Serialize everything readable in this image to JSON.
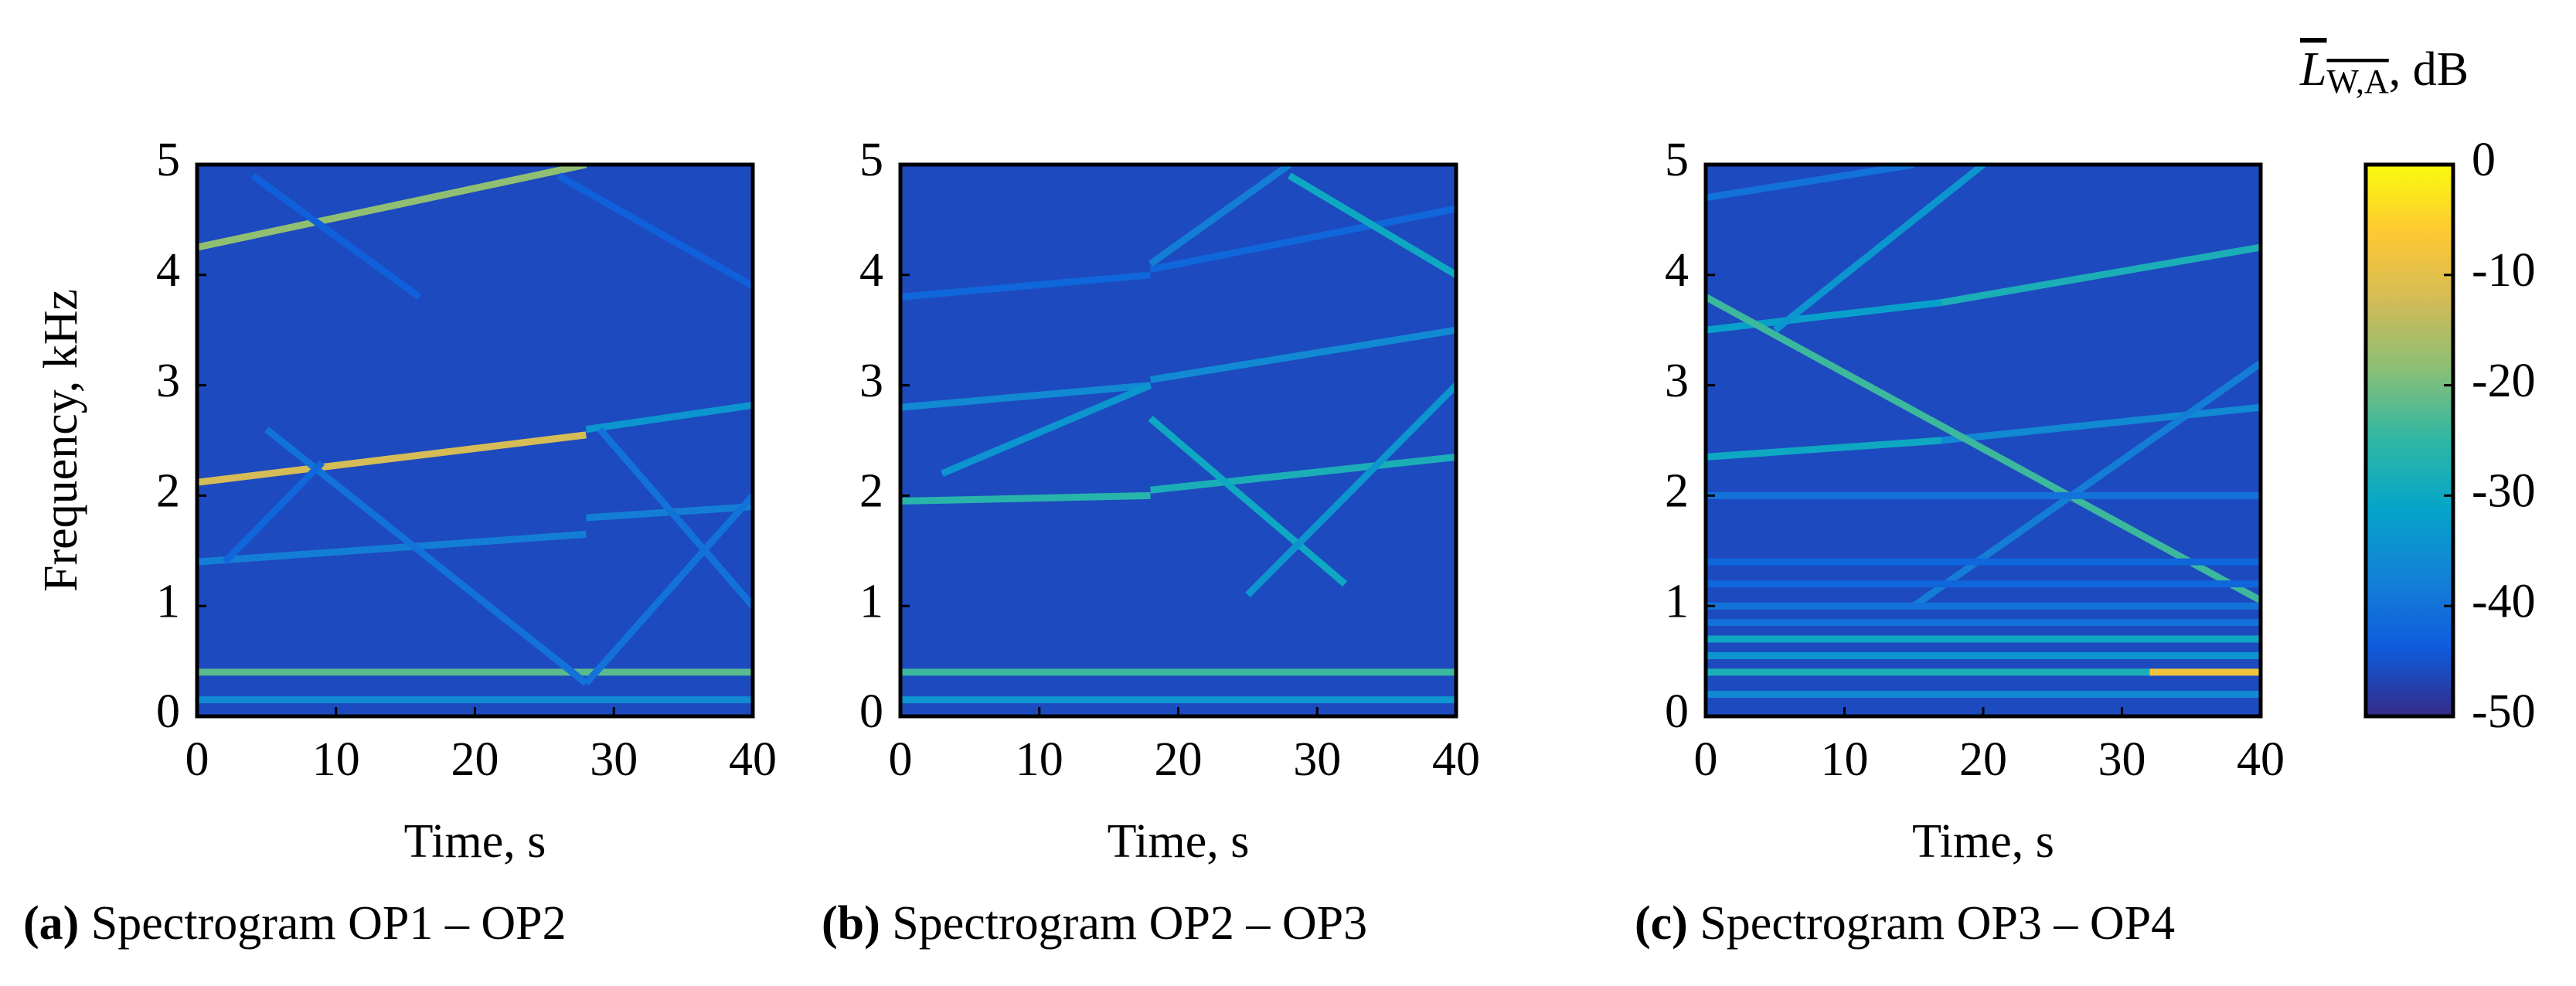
{
  "chart_data": [
    {
      "type": "spectrogram",
      "caption_label": "(a)",
      "caption": "Spectrogram OP1 – OP2",
      "xlabel": "Time, s",
      "ylabel": "Frequency, kHz",
      "xlim": [
        0,
        40
      ],
      "ylim": [
        0,
        5
      ],
      "xticks": [
        0,
        10,
        20,
        30,
        40
      ],
      "yticks": [
        0,
        1,
        2,
        3,
        4,
        5
      ],
      "background": -46,
      "series": [
        {
          "x": [
            0,
            28
          ],
          "values": [
            4.25,
            5.0
          ],
          "level": -18
        },
        {
          "x": [
            0,
            28
          ],
          "values": [
            2.12,
            2.55
          ],
          "level": -12
        },
        {
          "x": [
            28,
            40
          ],
          "values": [
            2.6,
            2.82
          ],
          "level": -34
        },
        {
          "x": [
            0,
            28
          ],
          "values": [
            1.4,
            1.65
          ],
          "level": -38
        },
        {
          "x": [
            28,
            40
          ],
          "values": [
            1.8,
            1.9
          ],
          "level": -38
        },
        {
          "x": [
            0,
            40
          ],
          "values": [
            0.4,
            0.4
          ],
          "level": -22
        },
        {
          "x": [
            0,
            40
          ],
          "values": [
            0.15,
            0.15
          ],
          "level": -36
        },
        {
          "x": [
            5,
            28
          ],
          "values": [
            2.6,
            0.3
          ],
          "level": -40
        },
        {
          "x": [
            2,
            9
          ],
          "values": [
            1.4,
            2.3
          ],
          "level": -42
        },
        {
          "x": [
            29,
            40
          ],
          "values": [
            2.6,
            1.0
          ],
          "level": -40
        },
        {
          "x": [
            28,
            40
          ],
          "values": [
            0.3,
            2.0
          ],
          "level": -40
        },
        {
          "x": [
            4,
            16
          ],
          "values": [
            4.9,
            3.8
          ],
          "level": -43
        },
        {
          "x": [
            26,
            40
          ],
          "values": [
            4.9,
            3.9
          ],
          "level": -43
        }
      ]
    },
    {
      "type": "spectrogram",
      "caption_label": "(b)",
      "caption": "Spectrogram OP2 – OP3",
      "xlabel": "Time, s",
      "xlim": [
        0,
        40
      ],
      "ylim": [
        0,
        5
      ],
      "xticks": [
        0,
        10,
        20,
        30,
        40
      ],
      "yticks": [
        0,
        1,
        2,
        3,
        4,
        5
      ],
      "background": -46,
      "series": [
        {
          "x": [
            0,
            18
          ],
          "values": [
            2.8,
            3.0
          ],
          "level": -36
        },
        {
          "x": [
            18,
            40
          ],
          "values": [
            3.05,
            3.5
          ],
          "level": -36
        },
        {
          "x": [
            0,
            18
          ],
          "values": [
            1.95,
            2.0
          ],
          "level": -26
        },
        {
          "x": [
            18,
            40
          ],
          "values": [
            2.05,
            2.35
          ],
          "level": -28
        },
        {
          "x": [
            0,
            18
          ],
          "values": [
            3.8,
            4.0
          ],
          "level": -42
        },
        {
          "x": [
            18,
            40
          ],
          "values": [
            4.05,
            4.6
          ],
          "level": -42
        },
        {
          "x": [
            0,
            40
          ],
          "values": [
            0.4,
            0.4
          ],
          "level": -24
        },
        {
          "x": [
            0,
            40
          ],
          "values": [
            0.15,
            0.15
          ],
          "level": -34
        },
        {
          "x": [
            3,
            18
          ],
          "values": [
            2.2,
            3.0
          ],
          "level": -34
        },
        {
          "x": [
            18,
            32
          ],
          "values": [
            2.7,
            1.2
          ],
          "level": -30
        },
        {
          "x": [
            25,
            40
          ],
          "values": [
            1.1,
            3.0
          ],
          "level": -34
        },
        {
          "x": [
            18,
            28
          ],
          "values": [
            4.1,
            5.0
          ],
          "level": -38
        },
        {
          "x": [
            28,
            40
          ],
          "values": [
            4.9,
            4.0
          ],
          "level": -30
        }
      ]
    },
    {
      "type": "spectrogram",
      "caption_label": "(c)",
      "caption": "Spectrogram OP3 – OP4",
      "xlabel": "Time, s",
      "xlim": [
        0,
        40
      ],
      "ylim": [
        0,
        5
      ],
      "xticks": [
        0,
        10,
        20,
        30,
        40
      ],
      "yticks": [
        0,
        1,
        2,
        3,
        4,
        5
      ],
      "background": -46,
      "series": [
        {
          "x": [
            0,
            15
          ],
          "values": [
            4.7,
            5.0
          ],
          "level": -40
        },
        {
          "x": [
            0,
            17
          ],
          "values": [
            3.5,
            3.75
          ],
          "level": -32
        },
        {
          "x": [
            17,
            40
          ],
          "values": [
            3.75,
            4.25
          ],
          "level": -28
        },
        {
          "x": [
            0,
            17
          ],
          "values": [
            2.35,
            2.5
          ],
          "level": -30
        },
        {
          "x": [
            17,
            40
          ],
          "values": [
            2.5,
            2.8
          ],
          "level": -36
        },
        {
          "x": [
            0,
            40
          ],
          "values": [
            3.8,
            1.05
          ],
          "level": -24
        },
        {
          "x": [
            5,
            20
          ],
          "values": [
            3.5,
            5.0
          ],
          "level": -34
        },
        {
          "x": [
            15,
            40
          ],
          "values": [
            1.0,
            3.2
          ],
          "level": -38
        },
        {
          "x": [
            0,
            40
          ],
          "values": [
            2.0,
            2.0
          ],
          "level": -40
        },
        {
          "x": [
            0,
            40
          ],
          "values": [
            0.2,
            0.2
          ],
          "level": -36
        },
        {
          "x": [
            0,
            32
          ],
          "values": [
            0.4,
            0.4
          ],
          "level": -28
        },
        {
          "x": [
            32,
            40
          ],
          "values": [
            0.4,
            0.4
          ],
          "level": -8
        },
        {
          "x": [
            0,
            40
          ],
          "values": [
            0.55,
            0.55
          ],
          "level": -34
        },
        {
          "x": [
            0,
            40
          ],
          "values": [
            0.7,
            0.7
          ],
          "level": -30
        },
        {
          "x": [
            0,
            40
          ],
          "values": [
            0.85,
            0.85
          ],
          "level": -40
        },
        {
          "x": [
            0,
            40
          ],
          "values": [
            1.0,
            1.0
          ],
          "level": -40
        },
        {
          "x": [
            0,
            40
          ],
          "values": [
            1.2,
            1.2
          ],
          "level": -42
        },
        {
          "x": [
            0,
            40
          ],
          "values": [
            1.4,
            1.4
          ],
          "level": -42
        }
      ]
    },
    {
      "type": "colorbar",
      "label_symbol": "L",
      "label_subscript": "W,A",
      "label_unit": ", dB",
      "clim": [
        -50,
        0
      ],
      "ticks": [
        0,
        -10,
        -20,
        -30,
        -40,
        -50
      ],
      "colormap": [
        "#352a87",
        "#0f5cdd",
        "#1481d6",
        "#06a4ca",
        "#2eb7a4",
        "#87bf77",
        "#d1bb59",
        "#fec832",
        "#f9fb0e"
      ]
    }
  ]
}
